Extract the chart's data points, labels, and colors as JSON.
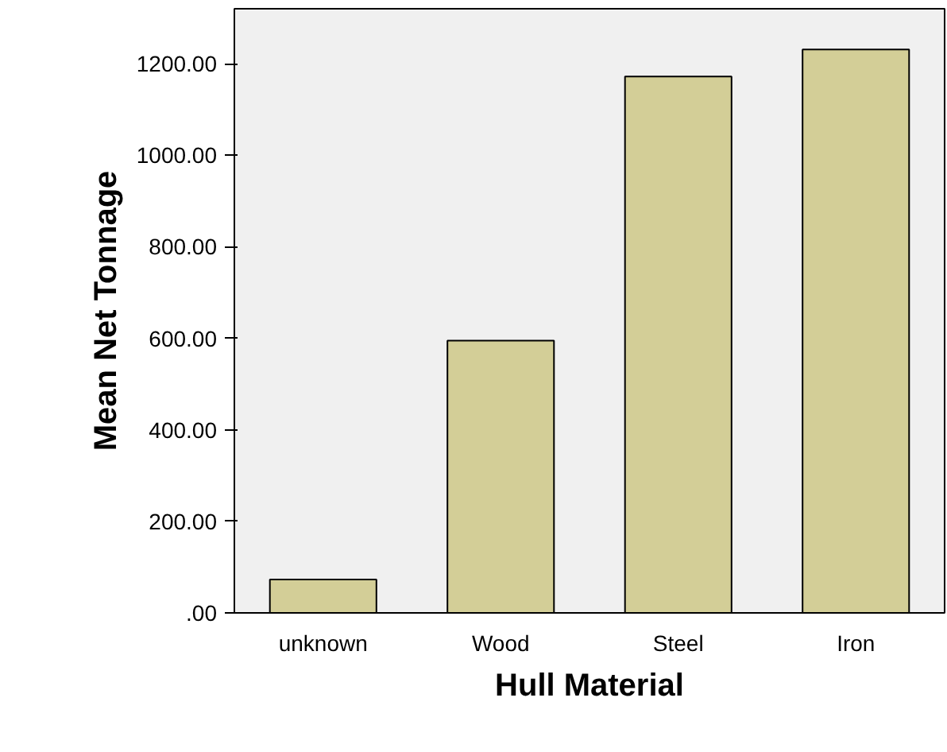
{
  "chart_data": {
    "type": "bar",
    "xlabel": "Hull Material",
    "ylabel": "Mean Net Tonnage",
    "categories": [
      "unknown",
      "Wood",
      "Steel",
      "Iron"
    ],
    "values": [
      73,
      595,
      1172,
      1231
    ],
    "color": "#d3ce97",
    "ylim": [
      0,
      1320
    ],
    "yticks": [
      {
        "value": 0,
        "label": ".00"
      },
      {
        "value": 200,
        "label": "200.00"
      },
      {
        "value": 400,
        "label": "400.00"
      },
      {
        "value": 600,
        "label": "600.00"
      },
      {
        "value": 800,
        "label": "800.00"
      },
      {
        "value": 1000,
        "label": "1000.00"
      },
      {
        "value": 1200,
        "label": "1200.00"
      }
    ],
    "grid": false
  }
}
